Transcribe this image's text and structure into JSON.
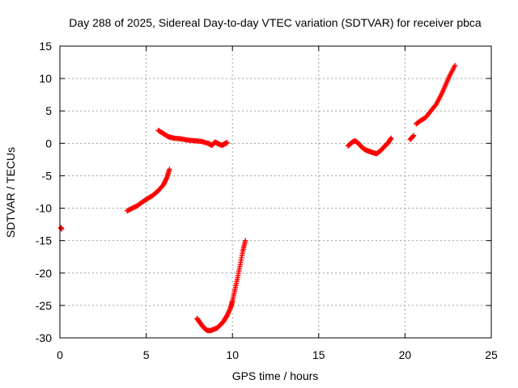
{
  "chart_data": {
    "type": "scatter",
    "title": "Day 288 of 2025, Sidereal Day-to-day VTEC variation (SDTVAR) for receiver pbca",
    "xlabel": "GPS time / hours",
    "ylabel": "SDTVAR / TECUs",
    "xlim": [
      0,
      25
    ],
    "ylim": [
      -30,
      15
    ],
    "xticks": [
      0,
      5,
      10,
      15,
      20,
      25
    ],
    "yticks": [
      -30,
      -25,
      -20,
      -15,
      -10,
      -5,
      0,
      5,
      10,
      15
    ],
    "grid": true,
    "marker": "plus",
    "color": "#ff0000",
    "series": [
      {
        "name": "SDTVAR",
        "segments": [
          [
            [
              0.05,
              -13.0
            ],
            [
              0.1,
              -13.2
            ]
          ],
          [
            [
              3.9,
              -10.4
            ],
            [
              4.2,
              -10.0
            ],
            [
              4.5,
              -9.6
            ],
            [
              4.8,
              -9.0
            ],
            [
              5.1,
              -8.5
            ],
            [
              5.4,
              -8.0
            ],
            [
              5.7,
              -7.3
            ],
            [
              6.0,
              -6.4
            ],
            [
              6.2,
              -5.3
            ],
            [
              6.35,
              -4.0
            ]
          ],
          [
            [
              5.7,
              2.0
            ],
            [
              6.0,
              1.5
            ],
            [
              6.3,
              1.0
            ],
            [
              6.6,
              0.8
            ],
            [
              7.0,
              0.7
            ],
            [
              7.4,
              0.5
            ],
            [
              7.8,
              0.4
            ],
            [
              8.2,
              0.3
            ],
            [
              8.6,
              0.0
            ],
            [
              8.8,
              -0.3
            ],
            [
              9.0,
              0.2
            ],
            [
              9.2,
              -0.1
            ],
            [
              9.4,
              -0.3
            ],
            [
              9.6,
              0.0
            ],
            [
              9.7,
              0.1
            ]
          ],
          [
            [
              7.95,
              -27.0
            ],
            [
              8.1,
              -27.6
            ],
            [
              8.3,
              -28.3
            ],
            [
              8.5,
              -28.8
            ],
            [
              8.7,
              -28.9
            ],
            [
              8.9,
              -28.7
            ],
            [
              9.1,
              -28.5
            ],
            [
              9.3,
              -28.0
            ],
            [
              9.5,
              -27.4
            ],
            [
              9.7,
              -26.5
            ],
            [
              9.9,
              -25.3
            ],
            [
              10.0,
              -24.3
            ],
            [
              10.15,
              -22.5
            ],
            [
              10.3,
              -20.7
            ],
            [
              10.45,
              -18.7
            ],
            [
              10.6,
              -16.6
            ],
            [
              10.75,
              -15.0
            ]
          ],
          [
            [
              16.7,
              -0.4
            ],
            [
              16.9,
              0.1
            ],
            [
              17.1,
              0.4
            ],
            [
              17.3,
              0.0
            ],
            [
              17.5,
              -0.6
            ],
            [
              17.7,
              -1.0
            ],
            [
              17.9,
              -1.2
            ],
            [
              18.1,
              -1.4
            ],
            [
              18.35,
              -1.6
            ],
            [
              18.6,
              -1.1
            ],
            [
              18.8,
              -0.5
            ],
            [
              19.0,
              0.0
            ],
            [
              19.2,
              0.8
            ]
          ],
          [
            [
              20.3,
              0.6
            ],
            [
              20.5,
              1.2
            ]
          ],
          [
            [
              20.65,
              3.0
            ],
            [
              20.9,
              3.5
            ],
            [
              21.2,
              4.0
            ],
            [
              21.5,
              5.0
            ],
            [
              21.8,
              6.0
            ],
            [
              22.1,
              7.5
            ],
            [
              22.35,
              9.0
            ],
            [
              22.6,
              10.5
            ],
            [
              22.9,
              12.0
            ]
          ]
        ]
      }
    ]
  }
}
